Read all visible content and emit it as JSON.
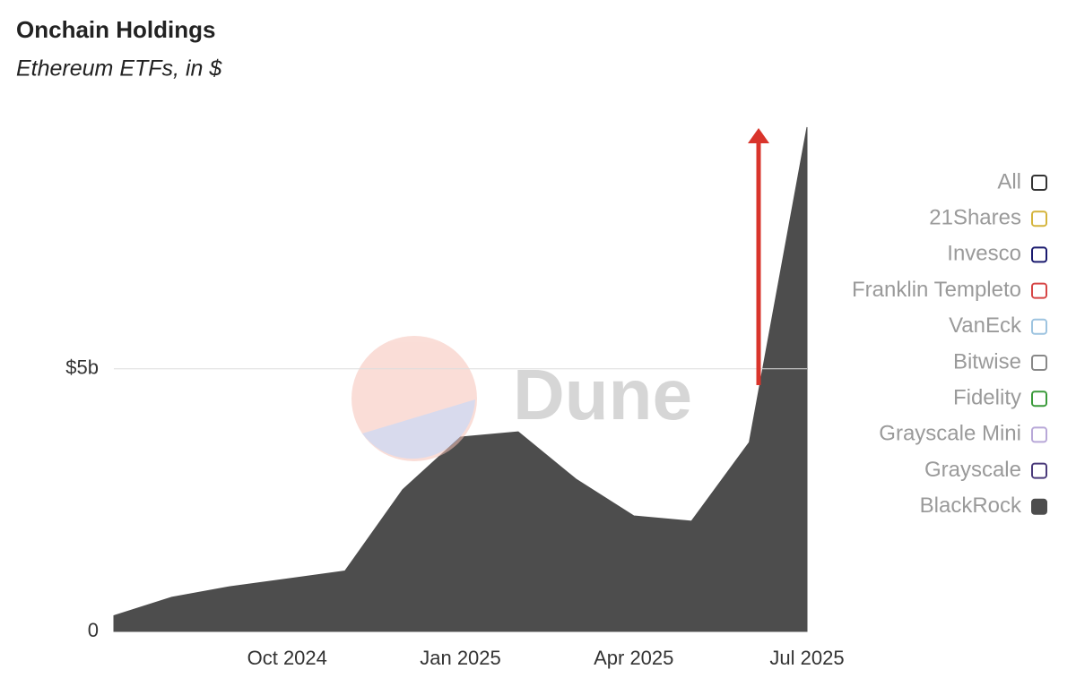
{
  "chart_data": {
    "type": "area",
    "title": "Onchain Holdings",
    "subtitle": "Ethereum ETFs, in $",
    "watermark": "Dune",
    "x": [
      "2024-07",
      "2024-08",
      "2024-09",
      "2024-10",
      "2024-11",
      "2024-12",
      "2025-01",
      "2025-02",
      "2025-03",
      "2025-04",
      "2025-05",
      "2025-06",
      "2025-07"
    ],
    "series": [
      {
        "name": "BlackRock",
        "color": "#4d4d4d",
        "values": [
          0.3,
          0.65,
          0.85,
          1.0,
          1.15,
          2.7,
          3.7,
          3.8,
          2.9,
          2.2,
          2.1,
          3.6,
          9.6
        ]
      }
    ],
    "legend_items": [
      {
        "name": "All",
        "color": "#333333"
      },
      {
        "name": "21Shares",
        "color": "#d4b43c"
      },
      {
        "name": "Invesco",
        "color": "#1a1a6e"
      },
      {
        "name": "Franklin Templeto",
        "color": "#d64545"
      },
      {
        "name": "VanEck",
        "color": "#9ec4e0"
      },
      {
        "name": "Bitwise",
        "color": "#888888"
      },
      {
        "name": "Fidelity",
        "color": "#3a9a3a"
      },
      {
        "name": "Grayscale Mini",
        "color": "#b8a8d8"
      },
      {
        "name": "Grayscale",
        "color": "#4a3a7a"
      }
    ],
    "xlim": [
      "2024-07",
      "2025-07"
    ],
    "xticks": [
      {
        "value": "2024-10",
        "label": "Oct 2024"
      },
      {
        "value": "2025-01",
        "label": "Jan 2025"
      },
      {
        "value": "2025-04",
        "label": "Apr 2025"
      },
      {
        "value": "2025-07",
        "label": "Jul 2025"
      }
    ],
    "ylim": [
      0,
      9.6
    ],
    "yticks": [
      0,
      {
        "value": 5,
        "label": "$5b"
      }
    ],
    "grid": true
  }
}
